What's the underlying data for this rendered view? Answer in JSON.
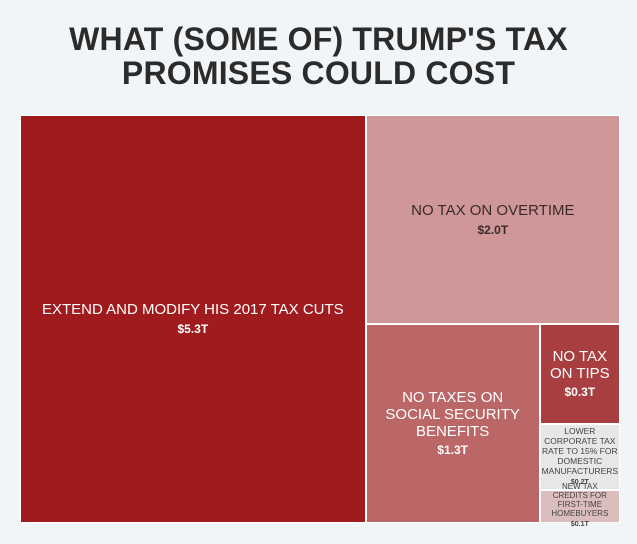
{
  "title": "WHAT (SOME OF) TRUMP'S TAX\nPROMISES COULD COST",
  "chart_data": {
    "type": "treemap",
    "title": "WHAT (SOME OF) TRUMP'S TAX PROMISES COULD COST",
    "unit": "trillion USD",
    "items": [
      {
        "label": "EXTEND AND MODIFY HIS 2017 TAX CUTS",
        "value": 5.3,
        "value_label": "$5.3T",
        "color": "#a01b1e",
        "text_color": "#ffffff"
      },
      {
        "label": "NO TAX ON OVERTIME",
        "value": 2.0,
        "value_label": "$2.0T",
        "color": "#cf9797",
        "text_color": "#3a2a2a"
      },
      {
        "label": "NO TAXES ON SOCIAL SECURITY BENEFITS",
        "value": 1.3,
        "value_label": "$1.3T",
        "color": "#bb6667",
        "text_color": "#ffffff"
      },
      {
        "label": "NO TAX ON TIPS",
        "value": 0.3,
        "value_label": "$0.3T",
        "color": "#a93e40",
        "text_color": "#ffffff"
      },
      {
        "label": "LOWER CORPORATE TAX RATE TO 15% FOR DOMESTIC MANUFACTURERS",
        "value": 0.2,
        "value_label": "$0.2T",
        "color": "#e8e6e6",
        "text_color": "#444444"
      },
      {
        "label": "NEW TAX CREDITS FOR FIRST-TIME HOMEBUYERS",
        "value": 0.1,
        "value_label": "$0.1T",
        "color": "#dcbdbe",
        "text_color": "#444444"
      }
    ]
  }
}
